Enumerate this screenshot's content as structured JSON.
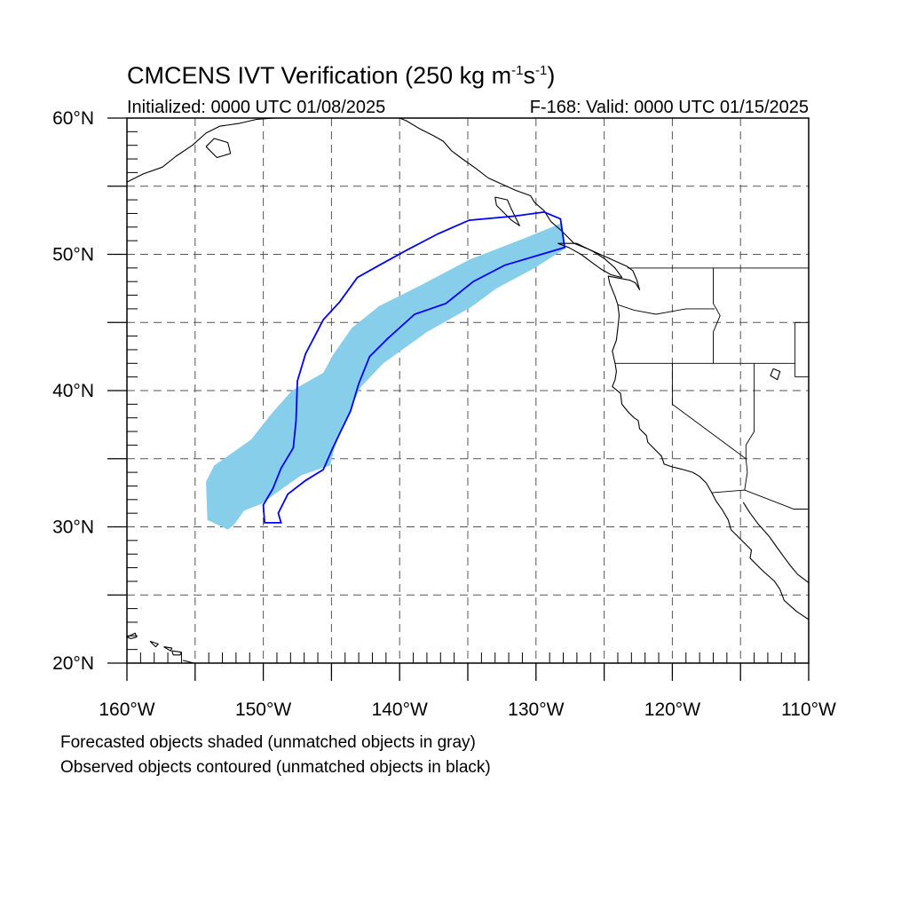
{
  "title": {
    "main": "CMCENS IVT Verification (250 kg m",
    "sup1": "-1",
    "mid": "s",
    "sup2": "-1",
    "end": ")"
  },
  "initialized": "Initialized: 0000 UTC 01/08/2025",
  "valid": "F-168: Valid: 0000 UTC 01/15/2025",
  "map": {
    "lon_range": [
      -160,
      -110
    ],
    "lat_range": [
      20,
      60
    ],
    "lon_ticks": [
      {
        "value": -160,
        "label": "160°W"
      },
      {
        "value": -150,
        "label": "150°W"
      },
      {
        "value": -140,
        "label": "140°W"
      },
      {
        "value": -130,
        "label": "130°W"
      },
      {
        "value": -120,
        "label": "120°W"
      },
      {
        "value": -110,
        "label": "110°W"
      }
    ],
    "lat_ticks": [
      {
        "value": 60,
        "label": "60°N"
      },
      {
        "value": 50,
        "label": "50°N"
      },
      {
        "value": 40,
        "label": "40°N"
      },
      {
        "value": 30,
        "label": "30°N"
      },
      {
        "value": 20,
        "label": "20°N"
      }
    ],
    "grid_spacing_deg": 5,
    "grid": "dashed",
    "colors": {
      "forecast_fill": "#87ceeb",
      "observed_contour": "#0000ff",
      "coastline": "#000000",
      "grid": "#555555"
    },
    "forecast_object": {
      "type": "shaded",
      "matched": true,
      "outline": [
        [
          -152.6,
          29.8
        ],
        [
          -154.1,
          30.5
        ],
        [
          -154.2,
          33.3
        ],
        [
          -153.6,
          34.5
        ],
        [
          -150.9,
          36.4
        ],
        [
          -149.4,
          38.3
        ],
        [
          -147.9,
          40.0
        ],
        [
          -145.6,
          41.3
        ],
        [
          -144.9,
          42.6
        ],
        [
          -143.5,
          44.6
        ],
        [
          -141.5,
          46.2
        ],
        [
          -138.5,
          47.7
        ],
        [
          -134.9,
          49.6
        ],
        [
          -130.8,
          51.2
        ],
        [
          -128.1,
          52.3
        ],
        [
          -127.9,
          50.4
        ],
        [
          -130.1,
          49.0
        ],
        [
          -132.9,
          47.5
        ],
        [
          -134.8,
          46.1
        ],
        [
          -138.0,
          44.3
        ],
        [
          -141.2,
          42.0
        ],
        [
          -142.9,
          40.2
        ],
        [
          -144.2,
          37.3
        ],
        [
          -144.8,
          35.7
        ],
        [
          -145.1,
          34.5
        ],
        [
          -147.2,
          33.8
        ],
        [
          -148.9,
          32.6
        ],
        [
          -150.1,
          31.7
        ],
        [
          -151.4,
          31.2
        ],
        [
          -152.1,
          30.2
        ]
      ]
    },
    "observed_object": {
      "type": "contour",
      "matched": true,
      "outline": [
        [
          -149.9,
          30.3
        ],
        [
          -150.0,
          31.6
        ],
        [
          -149.3,
          32.8
        ],
        [
          -148.7,
          34.3
        ],
        [
          -147.8,
          35.8
        ],
        [
          -147.6,
          37.8
        ],
        [
          -147.5,
          40.7
        ],
        [
          -146.9,
          42.7
        ],
        [
          -145.6,
          45.2
        ],
        [
          -144.4,
          46.5
        ],
        [
          -143.1,
          48.3
        ],
        [
          -141.5,
          49.2
        ],
        [
          -139.5,
          50.3
        ],
        [
          -137.2,
          51.5
        ],
        [
          -134.9,
          52.5
        ],
        [
          -131.6,
          52.8
        ],
        [
          -129.4,
          53.1
        ],
        [
          -128.2,
          52.6
        ],
        [
          -127.9,
          50.5
        ],
        [
          -129.6,
          50.0
        ],
        [
          -132.3,
          49.2
        ],
        [
          -134.6,
          48.0
        ],
        [
          -136.6,
          46.4
        ],
        [
          -138.9,
          45.6
        ],
        [
          -140.9,
          43.8
        ],
        [
          -142.2,
          42.5
        ],
        [
          -143.0,
          40.5
        ],
        [
          -143.6,
          38.5
        ],
        [
          -144.9,
          35.8
        ],
        [
          -145.6,
          34.2
        ],
        [
          -146.9,
          33.4
        ],
        [
          -148.2,
          32.4
        ],
        [
          -148.9,
          31.0
        ],
        [
          -148.7,
          30.3
        ]
      ]
    },
    "coastlines": [
      [
        [
          -160.0,
          55.3
        ],
        [
          -158.8,
          55.9
        ],
        [
          -157.4,
          56.4
        ],
        [
          -156.4,
          57.2
        ],
        [
          -155.2,
          58.0
        ],
        [
          -154.2,
          58.9
        ],
        [
          -153.2,
          59.4
        ],
        [
          -151.8,
          59.6
        ],
        [
          -150.5,
          59.9
        ],
        [
          -149.2,
          60.0
        ]
      ],
      [
        [
          -154.2,
          57.9
        ],
        [
          -153.4,
          57.1
        ],
        [
          -152.4,
          57.4
        ],
        [
          -152.6,
          58.2
        ],
        [
          -153.6,
          58.5
        ],
        [
          -154.2,
          57.9
        ]
      ],
      [
        [
          -148.0,
          60.0
        ],
        [
          -146.0,
          60.0
        ],
        [
          -144.0,
          60.0
        ],
        [
          -142.0,
          60.0
        ],
        [
          -140.0,
          60.0
        ],
        [
          -139.5,
          59.8
        ],
        [
          -138.5,
          59.2
        ],
        [
          -137.5,
          58.7
        ],
        [
          -136.8,
          58.3
        ],
        [
          -136.2,
          57.6
        ],
        [
          -135.4,
          57.0
        ],
        [
          -134.4,
          56.3
        ],
        [
          -133.5,
          55.6
        ],
        [
          -132.6,
          55.2
        ],
        [
          -131.5,
          54.7
        ],
        [
          -130.4,
          54.3
        ],
        [
          -130.1,
          53.8
        ],
        [
          -129.4,
          53.2
        ],
        [
          -128.9,
          52.4
        ],
        [
          -128.2,
          51.8
        ],
        [
          -127.6,
          51.2
        ],
        [
          -127.2,
          50.8
        ]
      ],
      [
        [
          -133.0,
          54.2
        ],
        [
          -132.1,
          54.0
        ],
        [
          -131.8,
          53.3
        ],
        [
          -131.5,
          52.7
        ],
        [
          -131.2,
          52.1
        ],
        [
          -131.8,
          52.5
        ],
        [
          -132.4,
          53.1
        ],
        [
          -132.9,
          53.6
        ],
        [
          -133.0,
          54.2
        ]
      ],
      [
        [
          -128.4,
          50.8
        ],
        [
          -127.6,
          50.5
        ],
        [
          -126.7,
          50.0
        ],
        [
          -125.9,
          49.4
        ],
        [
          -125.2,
          48.9
        ],
        [
          -124.5,
          48.5
        ],
        [
          -123.7,
          48.3
        ],
        [
          -124.2,
          49.0
        ],
        [
          -125.0,
          49.7
        ],
        [
          -125.8,
          50.2
        ],
        [
          -127.0,
          50.8
        ],
        [
          -128.4,
          50.8
        ]
      ],
      [
        [
          -127.2,
          50.8
        ],
        [
          -126.2,
          50.4
        ],
        [
          -125.3,
          50.0
        ],
        [
          -124.4,
          49.6
        ],
        [
          -123.3,
          49.1
        ],
        [
          -122.9,
          48.8
        ],
        [
          -122.6,
          48.1
        ],
        [
          -122.4,
          47.4
        ],
        [
          -122.7,
          47.9
        ],
        [
          -123.1,
          48.1
        ],
        [
          -124.7,
          48.4
        ],
        [
          -124.6,
          47.9
        ],
        [
          -124.2,
          46.9
        ],
        [
          -124.0,
          46.3
        ],
        [
          -123.9,
          45.5
        ],
        [
          -124.0,
          44.6
        ],
        [
          -124.1,
          43.7
        ],
        [
          -124.4,
          42.9
        ],
        [
          -124.2,
          42.0
        ],
        [
          -124.1,
          41.4
        ],
        [
          -124.2,
          40.8
        ],
        [
          -124.4,
          40.3
        ],
        [
          -123.8,
          39.8
        ],
        [
          -123.7,
          39.0
        ],
        [
          -123.2,
          38.4
        ],
        [
          -122.8,
          38.0
        ],
        [
          -122.5,
          37.8
        ],
        [
          -122.4,
          37.2
        ],
        [
          -121.9,
          36.7
        ],
        [
          -121.8,
          36.2
        ],
        [
          -121.3,
          35.7
        ],
        [
          -120.8,
          35.2
        ],
        [
          -120.6,
          34.6
        ],
        [
          -120.0,
          34.4
        ],
        [
          -119.2,
          34.2
        ],
        [
          -118.5,
          34.0
        ],
        [
          -118.0,
          33.7
        ],
        [
          -117.5,
          33.2
        ],
        [
          -117.1,
          32.5
        ],
        [
          -116.8,
          31.9
        ],
        [
          -116.3,
          31.2
        ],
        [
          -115.9,
          30.5
        ],
        [
          -115.7,
          29.8
        ],
        [
          -114.9,
          29.0
        ],
        [
          -114.2,
          28.3
        ],
        [
          -114.3,
          27.7
        ],
        [
          -113.4,
          26.8
        ],
        [
          -112.5,
          26.0
        ],
        [
          -112.1,
          25.4
        ],
        [
          -111.8,
          24.6
        ],
        [
          -110.9,
          23.8
        ],
        [
          -110.0,
          23.2
        ]
      ],
      [
        [
          -114.8,
          31.8
        ],
        [
          -114.3,
          31.0
        ],
        [
          -113.7,
          30.2
        ],
        [
          -112.9,
          29.3
        ],
        [
          -112.4,
          28.6
        ],
        [
          -111.9,
          27.9
        ],
        [
          -111.3,
          27.1
        ],
        [
          -110.8,
          26.5
        ],
        [
          -110.0,
          25.9
        ]
      ],
      [
        [
          -160.0,
          21.9
        ],
        [
          -159.4,
          22.2
        ],
        [
          -159.3,
          21.9
        ],
        [
          -159.7,
          21.8
        ],
        [
          -160.0,
          21.9
        ]
      ],
      [
        [
          -158.3,
          21.6
        ],
        [
          -157.7,
          21.4
        ],
        [
          -157.9,
          21.2
        ],
        [
          -158.3,
          21.6
        ]
      ],
      [
        [
          -157.3,
          21.2
        ],
        [
          -156.7,
          21.1
        ],
        [
          -156.8,
          20.9
        ],
        [
          -157.3,
          21.2
        ]
      ],
      [
        [
          -156.7,
          20.9
        ],
        [
          -156.0,
          20.8
        ],
        [
          -156.1,
          20.6
        ],
        [
          -156.6,
          20.6
        ],
        [
          -156.7,
          20.9
        ]
      ],
      [
        [
          -155.9,
          20.2
        ],
        [
          -155.1,
          20.0
        ],
        [
          -154.8,
          19.6
        ],
        [
          -155.5,
          19.1
        ]
      ],
      [
        [
          -112.6,
          41.6
        ],
        [
          -112.1,
          41.4
        ],
        [
          -112.3,
          40.8
        ],
        [
          -112.8,
          41.1
        ],
        [
          -112.6,
          41.6
        ]
      ]
    ],
    "borders": [
      [
        [
          -123.3,
          49.0
        ],
        [
          -120.0,
          49.0
        ],
        [
          -116.0,
          49.0
        ],
        [
          -112.0,
          49.0
        ],
        [
          -110.0,
          49.0
        ]
      ],
      [
        [
          -124.2,
          42.0
        ],
        [
          -120.0,
          42.0
        ],
        [
          -117.0,
          42.0
        ],
        [
          -114.0,
          42.0
        ],
        [
          -111.0,
          42.0
        ]
      ],
      [
        [
          -120.0,
          42.0
        ],
        [
          -120.0,
          39.0
        ],
        [
          -114.6,
          35.0
        ]
      ],
      [
        [
          -124.0,
          46.3
        ],
        [
          -122.8,
          45.9
        ],
        [
          -121.2,
          45.6
        ],
        [
          -119.0,
          46.0
        ],
        [
          -116.9,
          46.0
        ]
      ],
      [
        [
          -117.0,
          49.0
        ],
        [
          -117.0,
          46.4
        ],
        [
          -116.5,
          45.5
        ],
        [
          -117.0,
          44.3
        ],
        [
          -117.0,
          42.0
        ]
      ],
      [
        [
          -114.0,
          42.0
        ],
        [
          -114.0,
          37.0
        ],
        [
          -114.6,
          36.0
        ],
        [
          -114.6,
          35.0
        ],
        [
          -114.5,
          34.0
        ],
        [
          -114.7,
          32.7
        ]
      ],
      [
        [
          -117.1,
          32.5
        ],
        [
          -114.7,
          32.7
        ],
        [
          -111.1,
          31.3
        ],
        [
          -110.0,
          31.3
        ]
      ],
      [
        [
          -111.0,
          45.0
        ],
        [
          -110.0,
          45.0
        ]
      ],
      [
        [
          -111.0,
          41.0
        ],
        [
          -110.0,
          41.0
        ]
      ],
      [
        [
          -111.0,
          45.0
        ],
        [
          -111.0,
          41.0
        ]
      ]
    ]
  },
  "notes": {
    "line1": "Forecasted objects shaded (unmatched objects in gray)",
    "line2": "Observed objects contoured (unmatched objects in black)"
  }
}
